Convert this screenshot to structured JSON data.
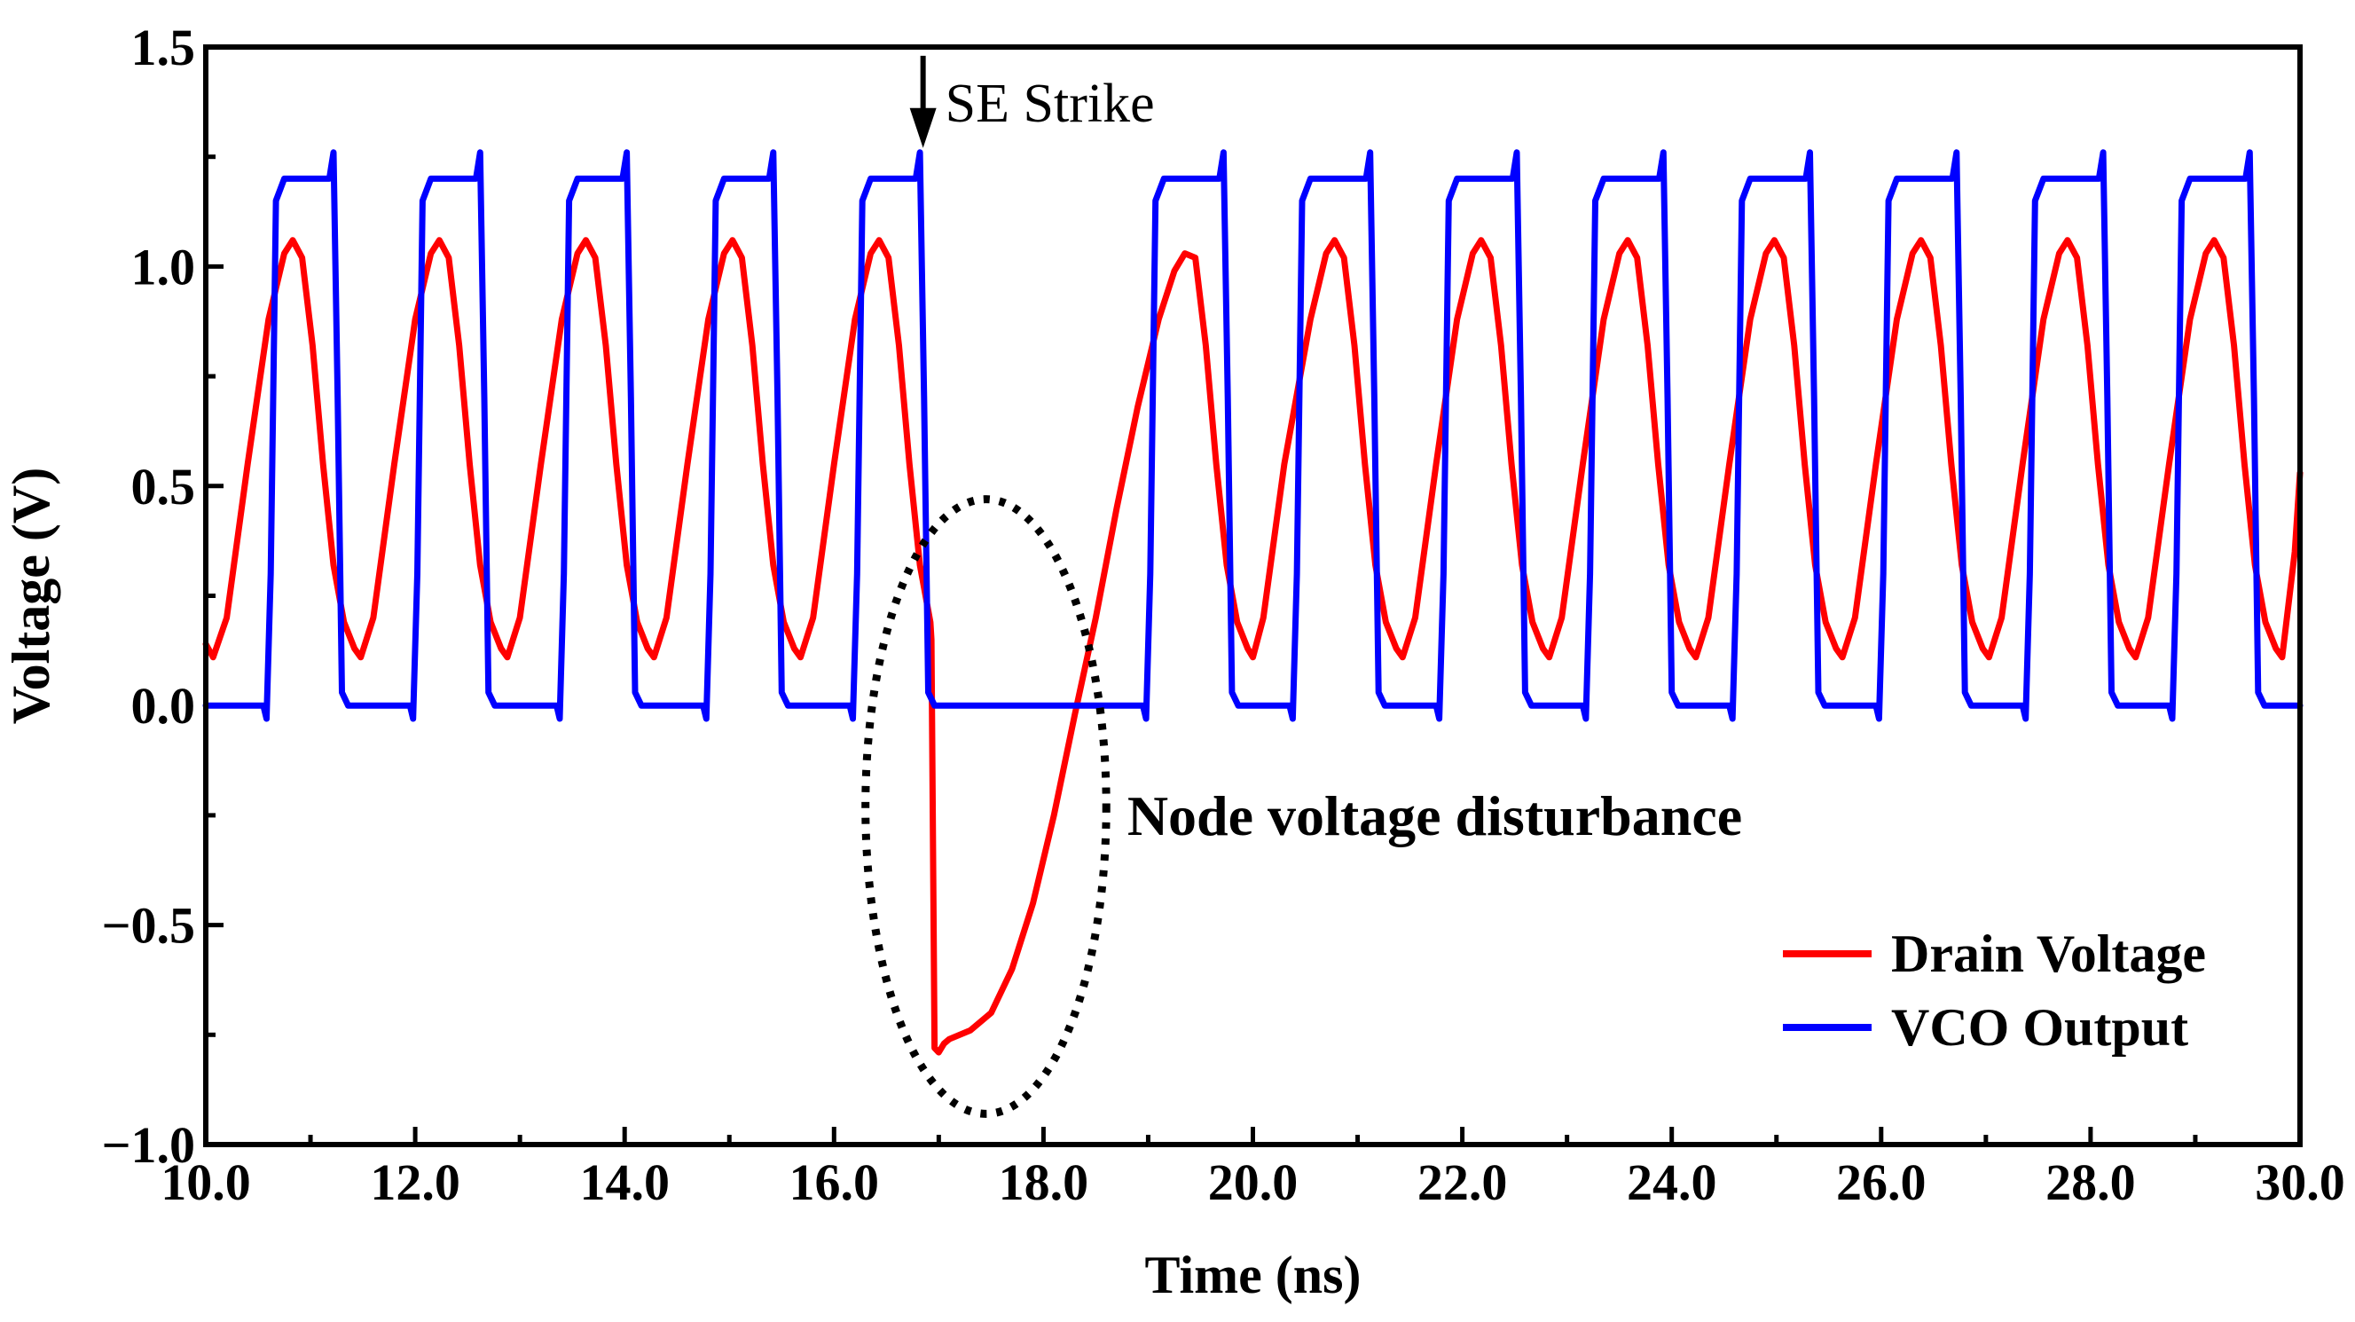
{
  "chart_data": {
    "type": "line",
    "title": "",
    "xlabel": "Time (ns)",
    "ylabel": "Voltage (V)",
    "xlim": [
      10.0,
      30.0
    ],
    "ylim": [
      -1.0,
      1.5
    ],
    "xticks": [
      10,
      12,
      14,
      16,
      18,
      20,
      22,
      24,
      26,
      28,
      30
    ],
    "xtick_labels": [
      "10.0",
      "12.0",
      "14.0",
      "16.0",
      "18.0",
      "20.0",
      "22.0",
      "24.0",
      "26.0",
      "28.0",
      "30.0"
    ],
    "yticks": [
      -1.0,
      -0.5,
      0.0,
      0.5,
      1.0,
      1.5
    ],
    "ytick_labels": [
      "−1.0",
      "−0.5",
      "0.0",
      "0.5",
      "1.0",
      "1.5"
    ],
    "grid": false,
    "legend_position": "bottom-right",
    "series": [
      {
        "name": "Drain Voltage",
        "color": "#ff0000",
        "x": [
          10.0,
          10.07,
          10.2,
          10.4,
          10.6,
          10.75,
          10.83,
          10.92,
          11.02,
          11.12,
          11.22,
          11.32,
          11.42,
          11.48,
          11.6,
          11.8,
          12.0,
          12.15,
          12.23,
          12.32,
          12.42,
          12.52,
          12.62,
          12.72,
          12.82,
          12.88,
          13.0,
          13.2,
          13.4,
          13.55,
          13.63,
          13.72,
          13.82,
          13.92,
          14.02,
          14.12,
          14.22,
          14.28,
          14.4,
          14.6,
          14.8,
          14.95,
          15.03,
          15.12,
          15.22,
          15.32,
          15.42,
          15.52,
          15.62,
          15.68,
          15.8,
          16.0,
          16.2,
          16.35,
          16.43,
          16.52,
          16.62,
          16.72,
          16.82,
          16.92,
          16.93,
          16.96,
          17.0,
          17.05,
          17.1,
          17.3,
          17.5,
          17.7,
          17.9,
          18.1,
          18.3,
          18.5,
          18.7,
          18.9,
          19.1,
          19.25,
          19.35,
          19.45,
          19.55,
          19.65,
          19.75,
          19.85,
          19.95,
          20.0,
          20.1,
          20.3,
          20.55,
          20.7,
          20.78,
          20.87,
          20.97,
          21.07,
          21.17,
          21.27,
          21.37,
          21.43,
          21.55,
          21.75,
          21.95,
          22.1,
          22.18,
          22.27,
          22.37,
          22.47,
          22.57,
          22.67,
          22.77,
          22.83,
          22.95,
          23.15,
          23.35,
          23.5,
          23.58,
          23.67,
          23.77,
          23.87,
          23.97,
          24.07,
          24.17,
          24.23,
          24.35,
          24.55,
          24.75,
          24.9,
          24.98,
          25.07,
          25.17,
          25.27,
          25.37,
          25.47,
          25.57,
          25.63,
          25.75,
          25.95,
          26.15,
          26.3,
          26.38,
          26.47,
          26.57,
          26.67,
          26.77,
          26.87,
          26.97,
          27.03,
          27.15,
          27.35,
          27.55,
          27.7,
          27.78,
          27.87,
          27.97,
          28.07,
          28.17,
          28.27,
          28.37,
          28.43,
          28.55,
          28.75,
          28.95,
          29.1,
          29.18,
          29.27,
          29.37,
          29.47,
          29.57,
          29.67,
          29.77,
          29.83,
          29.95,
          30.0
        ],
        "y": [
          0.14,
          0.11,
          0.2,
          0.55,
          0.88,
          1.03,
          1.06,
          1.02,
          0.82,
          0.55,
          0.32,
          0.19,
          0.13,
          0.11,
          0.2,
          0.55,
          0.88,
          1.03,
          1.06,
          1.02,
          0.82,
          0.55,
          0.32,
          0.19,
          0.13,
          0.11,
          0.2,
          0.55,
          0.88,
          1.03,
          1.06,
          1.02,
          0.82,
          0.55,
          0.32,
          0.19,
          0.13,
          0.11,
          0.2,
          0.55,
          0.88,
          1.03,
          1.06,
          1.02,
          0.82,
          0.55,
          0.32,
          0.19,
          0.13,
          0.11,
          0.2,
          0.55,
          0.88,
          1.03,
          1.06,
          1.02,
          0.82,
          0.55,
          0.32,
          0.19,
          0.15,
          -0.78,
          -0.79,
          -0.77,
          -0.76,
          -0.74,
          -0.7,
          -0.6,
          -0.45,
          -0.25,
          -0.02,
          0.2,
          0.45,
          0.68,
          0.88,
          0.99,
          1.03,
          1.02,
          0.82,
          0.55,
          0.32,
          0.19,
          0.13,
          0.11,
          0.2,
          0.55,
          0.88,
          1.03,
          1.06,
          1.02,
          0.82,
          0.55,
          0.32,
          0.19,
          0.13,
          0.11,
          0.2,
          0.55,
          0.88,
          1.03,
          1.06,
          1.02,
          0.82,
          0.55,
          0.32,
          0.19,
          0.13,
          0.11,
          0.2,
          0.55,
          0.88,
          1.03,
          1.06,
          1.02,
          0.82,
          0.55,
          0.32,
          0.19,
          0.13,
          0.11,
          0.2,
          0.55,
          0.88,
          1.03,
          1.06,
          1.02,
          0.82,
          0.55,
          0.32,
          0.19,
          0.13,
          0.11,
          0.2,
          0.55,
          0.88,
          1.03,
          1.06,
          1.02,
          0.82,
          0.55,
          0.32,
          0.19,
          0.13,
          0.11,
          0.2,
          0.55,
          0.88,
          1.03,
          1.06,
          1.02,
          0.82,
          0.55,
          0.32,
          0.19,
          0.13,
          0.11,
          0.2,
          0.55,
          0.88,
          1.03,
          1.06,
          1.02,
          0.82,
          0.55,
          0.32,
          0.19,
          0.13,
          0.11,
          0.35,
          0.53
        ]
      },
      {
        "name": "VCO Output",
        "color": "#0000ff",
        "x": [
          10.0,
          10.55,
          10.58,
          10.62,
          10.67,
          10.75,
          11.18,
          11.22,
          11.26,
          11.3,
          11.36,
          11.95,
          11.98,
          12.02,
          12.07,
          12.15,
          12.58,
          12.62,
          12.66,
          12.7,
          12.76,
          13.35,
          13.38,
          13.42,
          13.47,
          13.55,
          13.98,
          14.02,
          14.06,
          14.1,
          14.16,
          14.75,
          14.78,
          14.82,
          14.87,
          14.95,
          15.38,
          15.42,
          15.46,
          15.5,
          15.56,
          16.15,
          16.18,
          16.22,
          16.27,
          16.35,
          16.78,
          16.82,
          16.86,
          16.9,
          16.96,
          18.95,
          18.98,
          19.02,
          19.07,
          19.15,
          19.68,
          19.72,
          19.76,
          19.8,
          19.86,
          20.35,
          20.38,
          20.42,
          20.47,
          20.55,
          21.08,
          21.12,
          21.16,
          21.2,
          21.26,
          21.75,
          21.78,
          21.82,
          21.87,
          21.95,
          22.48,
          22.52,
          22.56,
          22.6,
          22.66,
          23.15,
          23.18,
          23.22,
          23.27,
          23.35,
          23.88,
          23.92,
          23.96,
          24.0,
          24.06,
          24.55,
          24.58,
          24.62,
          24.67,
          24.75,
          25.28,
          25.32,
          25.36,
          25.4,
          25.46,
          25.95,
          25.98,
          26.02,
          26.07,
          26.15,
          26.68,
          26.72,
          26.76,
          26.8,
          26.86,
          27.35,
          27.38,
          27.42,
          27.47,
          27.55,
          28.08,
          28.12,
          28.16,
          28.2,
          28.26,
          28.75,
          28.78,
          28.82,
          28.87,
          28.95,
          29.48,
          29.52,
          29.56,
          29.6,
          29.66,
          30.0
        ],
        "y": [
          0.0,
          0.0,
          -0.03,
          0.3,
          1.15,
          1.2,
          1.2,
          1.26,
          0.7,
          0.03,
          0.0,
          0.0,
          -0.03,
          0.3,
          1.15,
          1.2,
          1.2,
          1.26,
          0.7,
          0.03,
          0.0,
          0.0,
          -0.03,
          0.3,
          1.15,
          1.2,
          1.2,
          1.26,
          0.7,
          0.03,
          0.0,
          0.0,
          -0.03,
          0.3,
          1.15,
          1.2,
          1.2,
          1.26,
          0.7,
          0.03,
          0.0,
          0.0,
          -0.03,
          0.3,
          1.15,
          1.2,
          1.2,
          1.26,
          0.7,
          0.03,
          0.0,
          0.0,
          -0.03,
          0.3,
          1.15,
          1.2,
          1.2,
          1.26,
          0.7,
          0.03,
          0.0,
          0.0,
          -0.03,
          0.3,
          1.15,
          1.2,
          1.2,
          1.26,
          0.7,
          0.03,
          0.0,
          0.0,
          -0.03,
          0.3,
          1.15,
          1.2,
          1.2,
          1.26,
          0.7,
          0.03,
          0.0,
          0.0,
          -0.03,
          0.3,
          1.15,
          1.2,
          1.2,
          1.26,
          0.7,
          0.03,
          0.0,
          0.0,
          -0.03,
          0.3,
          1.15,
          1.2,
          1.2,
          1.26,
          0.7,
          0.03,
          0.0,
          0.0,
          -0.03,
          0.3,
          1.15,
          1.2,
          1.2,
          1.26,
          0.7,
          0.03,
          0.0,
          0.0,
          -0.03,
          0.3,
          1.15,
          1.2,
          1.2,
          1.26,
          0.7,
          0.03,
          0.0,
          0.0,
          -0.03,
          0.3,
          1.15,
          1.2,
          1.2,
          1.26,
          0.7,
          0.03,
          0.0,
          0.0
        ]
      }
    ],
    "annotations": {
      "strike_label": "SE Strike",
      "strike_x": 16.85,
      "strike_arrow_y": [
        1.48,
        1.27
      ],
      "disturbance_label": "Node voltage disturbance",
      "disturbance_label_pos": [
        18.8,
        -0.25
      ],
      "ellipse_center": [
        17.45,
        -0.23
      ],
      "ellipse_radius": [
        1.15,
        0.7
      ]
    }
  }
}
